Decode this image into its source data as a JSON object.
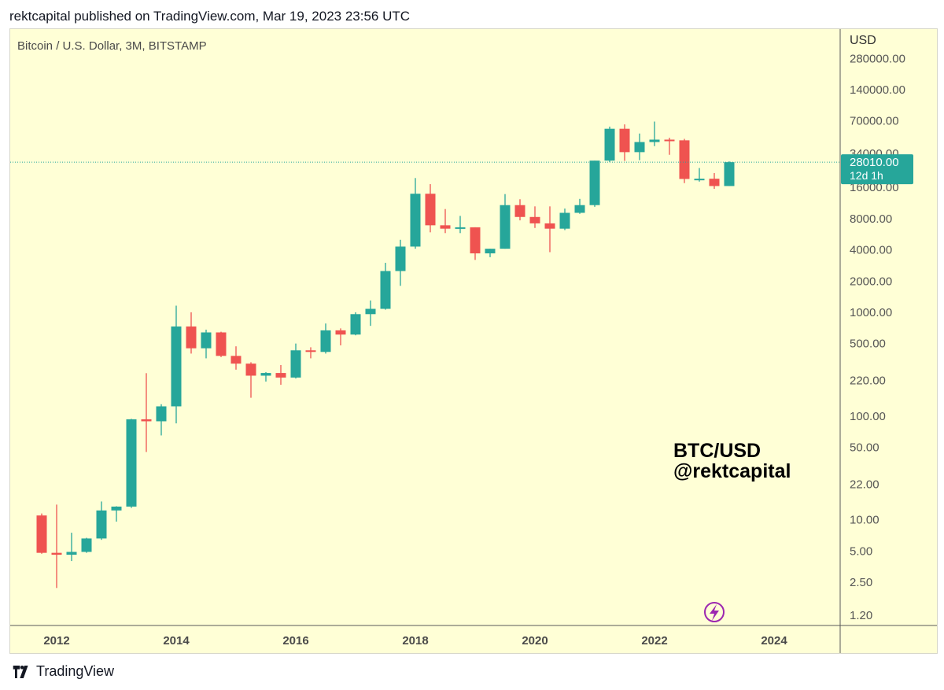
{
  "header": {
    "published_line": "rektcapital published on TradingView.com, Mar 19, 2023 23:56 UTC"
  },
  "footer": {
    "brand": "TradingView"
  },
  "colors": {
    "background": "#ffffd6",
    "bullish": "#26a69a",
    "bearish": "#ef5350",
    "axis": "#595959",
    "current_price_badge": "#26a69a",
    "lightning_icon": "#9c27b0"
  },
  "chart_data": {
    "type": "candlestick",
    "title": "Bitcoin / U.S. Dollar, 3M, BITSTAMP",
    "price_axis_label": "USD",
    "scale": "log",
    "ylim": [
      1.0,
      300000
    ],
    "xlim": [
      2011.45,
      2025.45
    ],
    "x_ticks": [
      2012,
      2014,
      2016,
      2018,
      2020,
      2022,
      2024
    ],
    "x_tick_labels": [
      "2012",
      "2014",
      "2016",
      "2018",
      "2020",
      "2022",
      "2024"
    ],
    "y_ticks": [
      280000,
      140000,
      70000,
      34000,
      16000,
      8000,
      4000,
      2000,
      1000,
      500,
      220,
      100,
      50,
      22,
      10,
      5,
      2.5,
      1.2
    ],
    "y_tick_labels": [
      "280000.00",
      "140000.00",
      "70000.00",
      "34000.00",
      "16000.00",
      "8000.00",
      "4000.00",
      "2000.00",
      "1000.00",
      "500.00",
      "220.00",
      "100.00",
      "50.00",
      "22.00",
      "10.00",
      "5.00",
      "2.50",
      "1.20"
    ],
    "current_price": 28010.0,
    "current_price_label": "28010.00",
    "countdown_label": "12d 1h",
    "annotation": {
      "line1": "BTC/USD",
      "line2": "@rektcapital"
    },
    "candles": [
      {
        "t": 2011.75,
        "o": 11.0,
        "h": 11.5,
        "l": 4.7,
        "c": 4.8
      },
      {
        "t": 2012.0,
        "o": 4.8,
        "h": 14.0,
        "l": 2.2,
        "c": 4.6
      },
      {
        "t": 2012.25,
        "o": 4.6,
        "h": 7.5,
        "l": 4.0,
        "c": 4.9
      },
      {
        "t": 2012.5,
        "o": 4.9,
        "h": 6.7,
        "l": 4.8,
        "c": 6.6
      },
      {
        "t": 2012.75,
        "o": 6.6,
        "h": 15.0,
        "l": 6.4,
        "c": 12.3
      },
      {
        "t": 2013.0,
        "o": 12.3,
        "h": 13.5,
        "l": 9.6,
        "c": 13.4
      },
      {
        "t": 2013.25,
        "o": 13.4,
        "h": 94.0,
        "l": 13.0,
        "c": 93.0
      },
      {
        "t": 2013.5,
        "o": 93.0,
        "h": 259.0,
        "l": 45.0,
        "c": 89.0
      },
      {
        "t": 2013.75,
        "o": 89.0,
        "h": 130.0,
        "l": 65.0,
        "c": 124.0
      },
      {
        "t": 2014.0,
        "o": 124.0,
        "h": 1160.0,
        "l": 85.0,
        "c": 730.0
      },
      {
        "t": 2014.25,
        "o": 730.0,
        "h": 1000.0,
        "l": 400.0,
        "c": 450.0
      },
      {
        "t": 2014.5,
        "o": 450.0,
        "h": 680.0,
        "l": 360.0,
        "c": 640.0
      },
      {
        "t": 2014.75,
        "o": 640.0,
        "h": 650.0,
        "l": 370.0,
        "c": 380.0
      },
      {
        "t": 2015.0,
        "o": 380.0,
        "h": 470.0,
        "l": 280.0,
        "c": 320.0
      },
      {
        "t": 2015.25,
        "o": 320.0,
        "h": 330.0,
        "l": 150.0,
        "c": 245.0
      },
      {
        "t": 2015.5,
        "o": 245.0,
        "h": 265.0,
        "l": 215.0,
        "c": 260.0
      },
      {
        "t": 2015.75,
        "o": 260.0,
        "h": 310.0,
        "l": 200.0,
        "c": 235.0
      },
      {
        "t": 2016.0,
        "o": 235.0,
        "h": 500.0,
        "l": 230.0,
        "c": 430.0
      },
      {
        "t": 2016.25,
        "o": 430.0,
        "h": 460.0,
        "l": 360.0,
        "c": 415.0
      },
      {
        "t": 2016.5,
        "o": 415.0,
        "h": 780.0,
        "l": 400.0,
        "c": 670.0
      },
      {
        "t": 2016.75,
        "o": 670.0,
        "h": 700.0,
        "l": 480.0,
        "c": 610.0
      },
      {
        "t": 2017.0,
        "o": 610.0,
        "h": 1000.0,
        "l": 600.0,
        "c": 960.0
      },
      {
        "t": 2017.25,
        "o": 960.0,
        "h": 1300.0,
        "l": 740.0,
        "c": 1080.0
      },
      {
        "t": 2017.5,
        "o": 1080.0,
        "h": 3000.0,
        "l": 1060.0,
        "c": 2500.0
      },
      {
        "t": 2017.75,
        "o": 2500.0,
        "h": 5000.0,
        "l": 1800.0,
        "c": 4300.0
      },
      {
        "t": 2018.0,
        "o": 4300.0,
        "h": 19700.0,
        "l": 4100.0,
        "c": 13900.0
      },
      {
        "t": 2018.25,
        "o": 13900.0,
        "h": 17200.0,
        "l": 5900.0,
        "c": 6900.0
      },
      {
        "t": 2018.5,
        "o": 6900.0,
        "h": 9900.0,
        "l": 5800.0,
        "c": 6400.0
      },
      {
        "t": 2018.75,
        "o": 6400.0,
        "h": 8500.0,
        "l": 5800.0,
        "c": 6600.0
      },
      {
        "t": 2019.0,
        "o": 6600.0,
        "h": 6600.0,
        "l": 3200.0,
        "c": 3700.0
      },
      {
        "t": 2019.25,
        "o": 3700.0,
        "h": 4100.0,
        "l": 3400.0,
        "c": 4100.0
      },
      {
        "t": 2019.5,
        "o": 4100.0,
        "h": 13800.0,
        "l": 4100.0,
        "c": 10800.0
      },
      {
        "t": 2019.75,
        "o": 10800.0,
        "h": 12300.0,
        "l": 7700.0,
        "c": 8300.0
      },
      {
        "t": 2020.0,
        "o": 8300.0,
        "h": 10500.0,
        "l": 6500.0,
        "c": 7200.0
      },
      {
        "t": 2020.25,
        "o": 7200.0,
        "h": 10500.0,
        "l": 3800.0,
        "c": 6400.0
      },
      {
        "t": 2020.5,
        "o": 6400.0,
        "h": 10000.0,
        "l": 6200.0,
        "c": 9100.0
      },
      {
        "t": 2020.75,
        "o": 9100.0,
        "h": 12400.0,
        "l": 8900.0,
        "c": 10800.0
      },
      {
        "t": 2021.0,
        "o": 10800.0,
        "h": 29000.0,
        "l": 10400.0,
        "c": 29000.0
      },
      {
        "t": 2021.25,
        "o": 29000.0,
        "h": 61700.0,
        "l": 28000.0,
        "c": 58800.0
      },
      {
        "t": 2021.5,
        "o": 58800.0,
        "h": 64800.0,
        "l": 28800.0,
        "c": 35000.0
      },
      {
        "t": 2021.75,
        "o": 35000.0,
        "h": 52900.0,
        "l": 29300.0,
        "c": 43800.0
      },
      {
        "t": 2022.0,
        "o": 43800.0,
        "h": 69000.0,
        "l": 40000.0,
        "c": 46200.0
      },
      {
        "t": 2022.25,
        "o": 46200.0,
        "h": 48200.0,
        "l": 33000.0,
        "c": 45500.0
      },
      {
        "t": 2022.5,
        "o": 45500.0,
        "h": 47000.0,
        "l": 17600.0,
        "c": 19300.0
      },
      {
        "t": 2022.75,
        "o": 19300.0,
        "h": 24600.0,
        "l": 18200.0,
        "c": 19400.0
      },
      {
        "t": 2023.0,
        "o": 19400.0,
        "h": 22000.0,
        "l": 15500.0,
        "c": 16500.0
      },
      {
        "t": 2023.25,
        "o": 16500.0,
        "h": 28500.0,
        "l": 16500.0,
        "c": 28010.0
      }
    ]
  }
}
